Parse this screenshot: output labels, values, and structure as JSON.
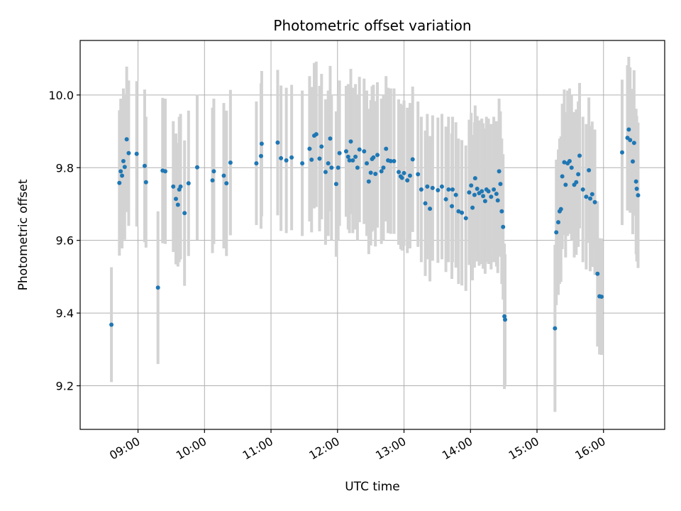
{
  "chart_data": {
    "type": "scatter",
    "title": "Photometric offset variation",
    "xlabel": "UTC time",
    "ylabel": "Photometric offset",
    "x_unit": "hours UTC",
    "xlim": [
      8.13,
      16.92
    ],
    "ylim": [
      9.08,
      10.15
    ],
    "x_ticks": [
      {
        "value": 9,
        "label": "09:00"
      },
      {
        "value": 10,
        "label": "10:00"
      },
      {
        "value": 11,
        "label": "11:00"
      },
      {
        "value": 12,
        "label": "12:00"
      },
      {
        "value": 13,
        "label": "13:00"
      },
      {
        "value": 14,
        "label": "14:00"
      },
      {
        "value": 15,
        "label": "15:00"
      },
      {
        "value": 16,
        "label": "16:00"
      }
    ],
    "y_ticks": [
      {
        "value": 9.2,
        "label": "9.2"
      },
      {
        "value": 9.4,
        "label": "9.4"
      },
      {
        "value": 9.6,
        "label": "9.6"
      },
      {
        "value": 9.8,
        "label": "9.8"
      },
      {
        "value": 10.0,
        "label": "10.0"
      }
    ],
    "grid": true,
    "marker_color": "#1f77b4",
    "errorbar_color": "#d3d3d3",
    "points": [
      [
        8.6,
        9.368,
        0.158
      ],
      [
        8.72,
        9.758,
        0.2
      ],
      [
        8.74,
        9.79,
        0.2
      ],
      [
        8.76,
        9.778,
        0.2
      ],
      [
        8.78,
        9.818,
        0.2
      ],
      [
        8.8,
        9.802,
        0.2
      ],
      [
        8.83,
        9.878,
        0.2
      ],
      [
        8.86,
        9.84,
        0.2
      ],
      [
        8.98,
        9.838,
        0.2
      ],
      [
        9.1,
        9.805,
        0.21
      ],
      [
        9.12,
        9.76,
        0.18
      ],
      [
        9.3,
        9.47,
        0.21
      ],
      [
        9.37,
        9.792,
        0.2
      ],
      [
        9.41,
        9.79,
        0.2
      ],
      [
        9.53,
        9.748,
        0.18
      ],
      [
        9.57,
        9.714,
        0.18
      ],
      [
        9.6,
        9.698,
        0.17
      ],
      [
        9.62,
        9.74,
        0.2
      ],
      [
        9.64,
        9.748,
        0.2
      ],
      [
        9.7,
        9.675,
        0.2
      ],
      [
        9.76,
        9.757,
        0.2
      ],
      [
        9.89,
        9.801,
        0.2
      ],
      [
        10.12,
        9.765,
        0.2
      ],
      [
        10.14,
        9.79,
        0.2
      ],
      [
        10.29,
        9.778,
        0.2
      ],
      [
        10.33,
        9.757,
        0.2
      ],
      [
        10.39,
        9.814,
        0.2
      ],
      [
        10.78,
        9.812,
        0.17
      ],
      [
        10.85,
        9.832,
        0.2
      ],
      [
        10.86,
        9.866,
        0.2
      ],
      [
        11.1,
        9.869,
        0.2
      ],
      [
        11.15,
        9.826,
        0.2
      ],
      [
        11.23,
        9.82,
        0.2
      ],
      [
        11.31,
        9.828,
        0.2
      ],
      [
        11.47,
        9.812,
        0.2
      ],
      [
        11.58,
        9.852,
        0.2
      ],
      [
        11.61,
        9.822,
        0.2
      ],
      [
        11.65,
        9.888,
        0.2
      ],
      [
        11.68,
        9.892,
        0.2
      ],
      [
        11.73,
        9.825,
        0.2
      ],
      [
        11.76,
        9.858,
        0.2
      ],
      [
        11.82,
        9.788,
        0.2
      ],
      [
        11.86,
        9.812,
        0.2
      ],
      [
        11.89,
        9.88,
        0.2
      ],
      [
        11.91,
        9.8,
        0.2
      ],
      [
        11.98,
        9.755,
        0.2
      ],
      [
        12.01,
        9.8,
        0.2
      ],
      [
        12.03,
        9.84,
        0.2
      ],
      [
        12.13,
        9.845,
        0.18
      ],
      [
        12.16,
        9.83,
        0.2
      ],
      [
        12.18,
        9.82,
        0.2
      ],
      [
        12.2,
        9.872,
        0.2
      ],
      [
        12.23,
        9.82,
        0.2
      ],
      [
        12.27,
        9.83,
        0.2
      ],
      [
        12.3,
        9.8,
        0.2
      ],
      [
        12.33,
        9.85,
        0.2
      ],
      [
        12.4,
        9.845,
        0.2
      ],
      [
        12.44,
        9.812,
        0.2
      ],
      [
        12.47,
        9.762,
        0.2
      ],
      [
        12.5,
        9.786,
        0.2
      ],
      [
        12.52,
        9.824,
        0.2
      ],
      [
        12.54,
        9.828,
        0.2
      ],
      [
        12.57,
        9.783,
        0.2
      ],
      [
        12.6,
        9.835,
        0.2
      ],
      [
        12.66,
        9.79,
        0.2
      ],
      [
        12.69,
        9.8,
        0.2
      ],
      [
        12.73,
        9.852,
        0.2
      ],
      [
        12.76,
        9.82,
        0.2
      ],
      [
        12.8,
        9.818,
        0.2
      ],
      [
        12.85,
        9.818,
        0.2
      ],
      [
        12.92,
        9.788,
        0.2
      ],
      [
        12.95,
        9.776,
        0.2
      ],
      [
        12.97,
        9.772,
        0.2
      ],
      [
        13.0,
        9.785,
        0.2
      ],
      [
        13.05,
        9.765,
        0.2
      ],
      [
        13.09,
        9.778,
        0.2
      ],
      [
        13.13,
        9.823,
        0.2
      ],
      [
        13.21,
        9.782,
        0.2
      ],
      [
        13.26,
        9.74,
        0.2
      ],
      [
        13.32,
        9.702,
        0.2
      ],
      [
        13.35,
        9.748,
        0.2
      ],
      [
        13.39,
        9.687,
        0.2
      ],
      [
        13.43,
        9.744,
        0.2
      ],
      [
        13.51,
        9.738,
        0.2
      ],
      [
        13.57,
        9.748,
        0.2
      ],
      [
        13.63,
        9.713,
        0.2
      ],
      [
        13.67,
        9.74,
        0.2
      ],
      [
        13.72,
        9.694,
        0.2
      ],
      [
        13.73,
        9.74,
        0.2
      ],
      [
        13.78,
        9.725,
        0.2
      ],
      [
        13.82,
        9.68,
        0.2
      ],
      [
        13.87,
        9.676,
        0.2
      ],
      [
        13.93,
        9.661,
        0.2
      ],
      [
        13.98,
        9.732,
        0.2
      ],
      [
        14.01,
        9.751,
        0.2
      ],
      [
        14.03,
        9.69,
        0.2
      ],
      [
        14.06,
        9.725,
        0.2
      ],
      [
        14.07,
        9.771,
        0.2
      ],
      [
        14.1,
        9.742,
        0.2
      ],
      [
        14.13,
        9.73,
        0.2
      ],
      [
        14.17,
        9.735,
        0.2
      ],
      [
        14.19,
        9.722,
        0.2
      ],
      [
        14.22,
        9.708,
        0.2
      ],
      [
        14.24,
        9.74,
        0.2
      ],
      [
        14.27,
        9.735,
        0.2
      ],
      [
        14.31,
        9.72,
        0.2
      ],
      [
        14.35,
        9.74,
        0.2
      ],
      [
        14.39,
        9.728,
        0.2
      ],
      [
        14.41,
        9.71,
        0.2
      ],
      [
        14.43,
        9.79,
        0.2
      ],
      [
        14.45,
        9.755,
        0.2
      ],
      [
        14.47,
        9.68,
        0.2
      ],
      [
        14.49,
        9.637,
        0.2
      ],
      [
        14.51,
        9.391,
        0.2
      ],
      [
        14.52,
        9.382,
        0.18
      ],
      [
        15.27,
        9.358,
        0.23
      ],
      [
        15.29,
        9.622,
        0.2
      ],
      [
        15.32,
        9.65,
        0.2
      ],
      [
        15.34,
        9.68,
        0.2
      ],
      [
        15.36,
        9.686,
        0.2
      ],
      [
        15.38,
        9.776,
        0.2
      ],
      [
        15.41,
        9.815,
        0.2
      ],
      [
        15.43,
        9.753,
        0.2
      ],
      [
        15.46,
        9.812,
        0.2
      ],
      [
        15.49,
        9.818,
        0.2
      ],
      [
        15.52,
        9.8,
        0.2
      ],
      [
        15.56,
        9.753,
        0.2
      ],
      [
        15.59,
        9.76,
        0.2
      ],
      [
        15.62,
        9.782,
        0.2
      ],
      [
        15.64,
        9.833,
        0.2
      ],
      [
        15.69,
        9.74,
        0.2
      ],
      [
        15.74,
        9.72,
        0.2
      ],
      [
        15.78,
        9.793,
        0.2
      ],
      [
        15.8,
        9.715,
        0.2
      ],
      [
        15.83,
        9.727,
        0.2
      ],
      [
        15.87,
        9.705,
        0.2
      ],
      [
        15.91,
        9.508,
        0.2
      ],
      [
        15.94,
        9.446,
        0.16
      ],
      [
        15.97,
        9.445,
        0.16
      ],
      [
        16.28,
        9.842,
        0.2
      ],
      [
        16.36,
        9.882,
        0.2
      ],
      [
        16.38,
        9.905,
        0.2
      ],
      [
        16.4,
        9.876,
        0.2
      ],
      [
        16.44,
        9.817,
        0.2
      ],
      [
        16.46,
        9.868,
        0.2
      ],
      [
        16.49,
        9.762,
        0.2
      ],
      [
        16.5,
        9.742,
        0.2
      ],
      [
        16.52,
        9.724,
        0.2
      ]
    ]
  }
}
